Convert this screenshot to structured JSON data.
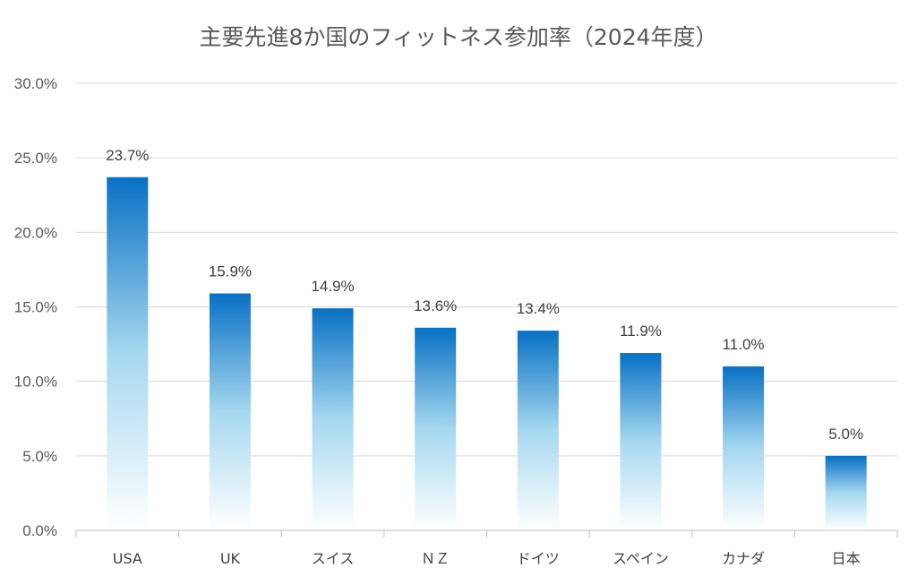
{
  "chart_data": {
    "type": "bar",
    "title": "主要先進8か国のフィットネス参加率（2024年度）",
    "xlabel": "",
    "ylabel": "",
    "categories": [
      "USA",
      "UK",
      "スイス",
      "ＮＺ",
      "ドイツ",
      "スペイン",
      "カナダ",
      "日本"
    ],
    "values": [
      23.7,
      15.9,
      14.9,
      13.6,
      13.4,
      11.9,
      11.0,
      5.0
    ],
    "value_labels": [
      "23.7%",
      "15.9%",
      "14.9%",
      "13.6%",
      "13.4%",
      "11.9%",
      "11.0%",
      "5.0%"
    ],
    "ylim": [
      0,
      30
    ],
    "yticks": [
      0,
      5,
      10,
      15,
      20,
      25,
      30
    ],
    "ytick_labels": [
      "0.0%",
      "5.0%",
      "10.0%",
      "15.0%",
      "20.0%",
      "25.0%",
      "30.0%"
    ],
    "grid": true,
    "legend": "none",
    "colors": {
      "bar_top": "#0870C4",
      "bar_mid": "#A6D8F0",
      "bar_bottom": "#FFFFFF"
    }
  }
}
